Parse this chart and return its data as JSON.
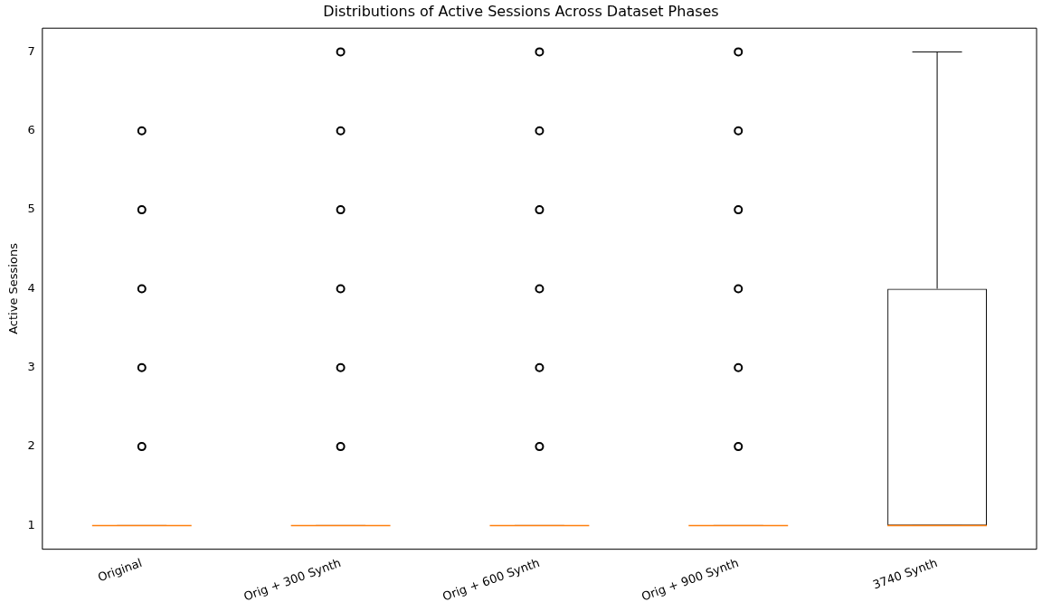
{
  "chart_data": {
    "type": "box",
    "title": "Distributions of Active Sessions Across Dataset Phases",
    "ylabel": "Active Sessions",
    "categories": [
      "Original",
      "Orig + 300 Synth",
      "Orig + 600 Synth",
      "Orig + 900 Synth",
      "3740 Synth"
    ],
    "boxes": [
      {
        "low": 1,
        "q1": 1,
        "median": 1,
        "q3": 1,
        "high": 1,
        "outliers": [
          2,
          3,
          4,
          5,
          6
        ]
      },
      {
        "low": 1,
        "q1": 1,
        "median": 1,
        "q3": 1,
        "high": 1,
        "outliers": [
          2,
          3,
          4,
          5,
          6,
          7
        ]
      },
      {
        "low": 1,
        "q1": 1,
        "median": 1,
        "q3": 1,
        "high": 1,
        "outliers": [
          2,
          3,
          4,
          5,
          6,
          7
        ]
      },
      {
        "low": 1,
        "q1": 1,
        "median": 1,
        "q3": 1,
        "high": 1,
        "outliers": [
          2,
          3,
          4,
          5,
          6,
          7
        ]
      },
      {
        "low": 1,
        "q1": 1,
        "median": 1,
        "q3": 4,
        "high": 7
      }
    ],
    "ylim": [
      0.7,
      7.3
    ],
    "yticks": [
      1,
      2,
      3,
      4,
      5,
      6,
      7
    ]
  }
}
